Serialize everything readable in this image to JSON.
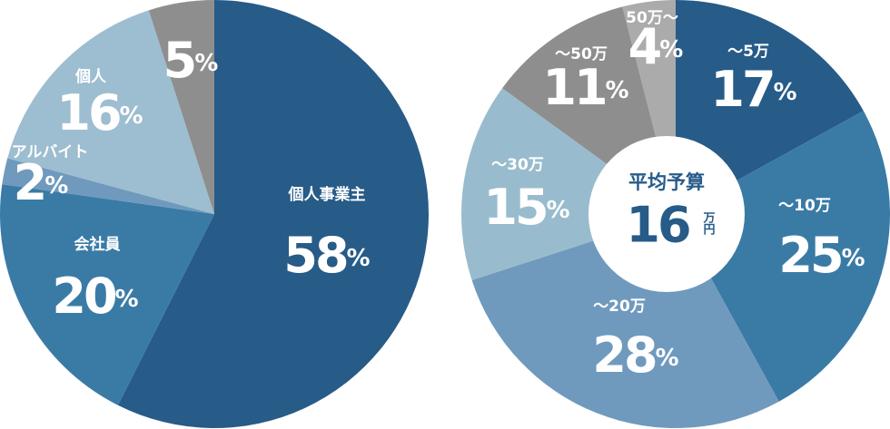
{
  "chart_data": [
    {
      "type": "pie",
      "unit": "%",
      "categories": [
        "個人事業主",
        "会社員",
        "アルバイト",
        "個人",
        null
      ],
      "values": [
        58,
        20,
        2,
        16,
        5
      ],
      "colors": [
        "#275b88",
        "#3a7ba6",
        "#6f9abd",
        "#9dbdd0",
        "#8e8e8e"
      ]
    },
    {
      "type": "donut",
      "unit": "%",
      "categories": [
        "～5万",
        "～10万",
        "～20万",
        "～30万",
        "～50万",
        "50万～"
      ],
      "values": [
        17,
        25,
        28,
        15,
        11,
        4
      ],
      "colors": [
        "#275b88",
        "#3a7ba6",
        "#6f9abd",
        "#98bccd",
        "#8e8e8e",
        "#ababab"
      ],
      "center_label": {
        "title": "平均予算",
        "value": 16,
        "unit": "万円"
      }
    }
  ]
}
